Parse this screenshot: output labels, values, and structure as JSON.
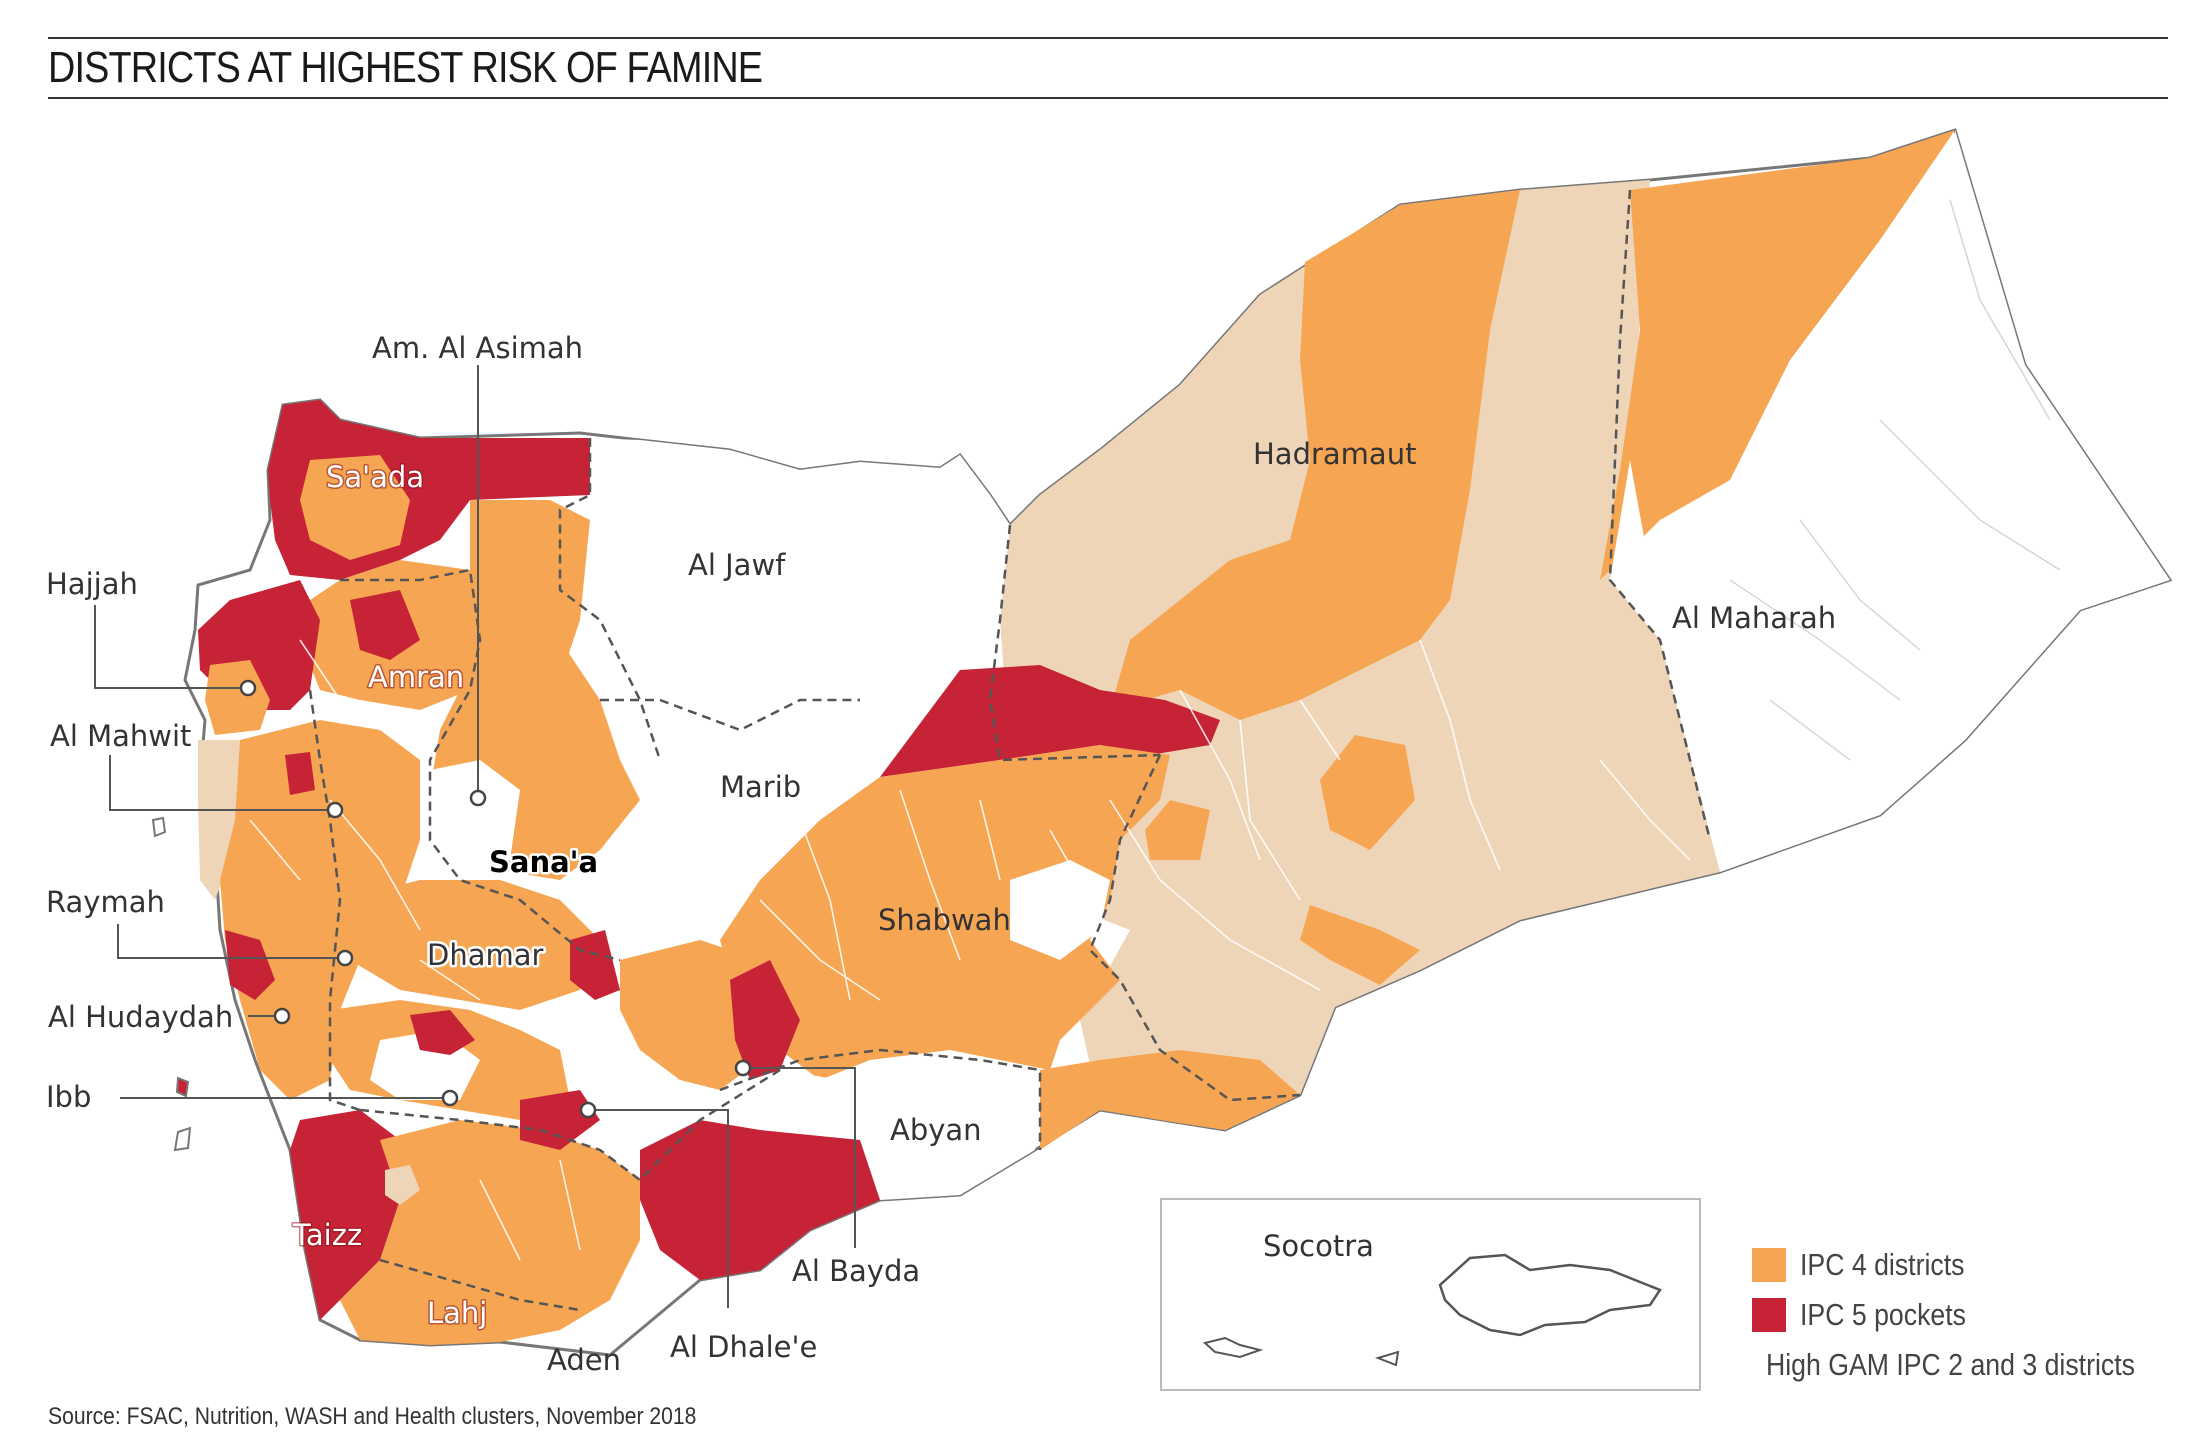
{
  "title": "DISTRICTS AT HIGHEST RISK OF FAMINE",
  "source": "Source: FSAC, Nutrition, WASH and Health clusters, November 2018",
  "colors": {
    "ipc4": "#f6a653",
    "ipc5": "#c62336",
    "gam": "#efd5b8",
    "none": "#ffffff",
    "border": "#777777"
  },
  "legend": [
    {
      "label": "IPC 4 districts",
      "color": "#f6a653"
    },
    {
      "label": "IPC 5 pockets",
      "color": "#c62336"
    },
    {
      "label": "High GAM IPC 2 and 3 districts",
      "color": "#efd5b8"
    }
  ],
  "governorates": {
    "saada": "Sa'ada",
    "amran": "Amran",
    "al_jawf": "Al Jawf",
    "hadramaut": "Hadramaut",
    "al_maharah": "Al Maharah",
    "marib": "Marib",
    "sanaa": "Sana'a",
    "shabwah": "Shabwah",
    "dhamar": "Dhamar",
    "abyan": "Abyan",
    "taizz": "Taizz",
    "lahj": "Lahj",
    "aden": "Aden",
    "al_bayda": "Al Bayda",
    "al_dhalee": "Al Dhale'e",
    "am_al_asimah": "Am. Al Asimah",
    "hajjah": "Hajjah",
    "al_mahwit": "Al Mahwit",
    "raymah": "Raymah",
    "al_hudaydah": "Al Hudaydah",
    "ibb": "Ibb",
    "socotra": "Socotra"
  }
}
